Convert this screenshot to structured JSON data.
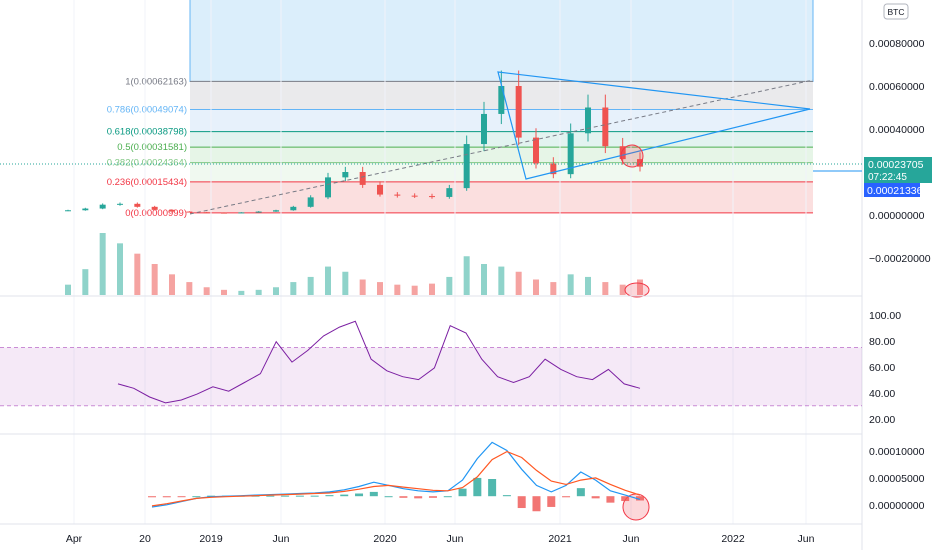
{
  "currency_badge": "BTC",
  "colors": {
    "up": "#26a69a",
    "down": "#ef5350",
    "rsi": "#7b1fa2",
    "macd": "#2196f3",
    "signal": "#ff5722",
    "triangle": "#2196f3",
    "highlight": "#f23645"
  },
  "price_axis": {
    "ticks": [
      "0.00080000",
      "0.00060000",
      "0.00040000",
      "0.00020000",
      "0.00000000",
      "−0.00020000"
    ]
  },
  "price_tags": {
    "current": "0.00023705",
    "countdown": "07:22:45",
    "secondary": "0.00021336"
  },
  "rsi_axis": {
    "ticks": [
      "100.00",
      "80.00",
      "60.00",
      "40.00",
      "20.00"
    ]
  },
  "macd_axis": {
    "ticks": [
      "0.00010000",
      "0.00005000",
      "0.00000000"
    ]
  },
  "date_axis": {
    "labels": [
      "Apr",
      "20",
      "2019",
      "Jun",
      "2020",
      "Jun",
      "2021",
      "Jun",
      "2022",
      "Jun"
    ]
  },
  "fib_levels": [
    {
      "ratio": 1,
      "price": 0.00062163,
      "label": "1(0.00062163)",
      "color": "#787b86",
      "fill": "#e8e8ea"
    },
    {
      "ratio": 0.786,
      "price": 0.00049074,
      "label": "0.786(0.00049074)",
      "color": "#64b5f6",
      "fill": "#e4f0fb"
    },
    {
      "ratio": 0.618,
      "price": 0.00038798,
      "label": "0.618(0.00038798)",
      "color": "#089981",
      "fill": "#dff2ee"
    },
    {
      "ratio": 0.5,
      "price": 0.00031581,
      "label": "0.5(0.00031581)",
      "color": "#4caf50",
      "fill": "#e3f4e4"
    },
    {
      "ratio": 0.382,
      "price": 0.00024364,
      "label": "0.382(0.00024364)",
      "color": "#81c784",
      "fill": "#eef8ee"
    },
    {
      "ratio": 0.236,
      "price": 0.00015434,
      "label": "0.236(0.00015434)",
      "color": "#f23645",
      "fill": "#fbdcdc"
    },
    {
      "ratio": 0,
      "price": 9.99e-06,
      "label": "0(0.00000999)",
      "color": "#f23645",
      "fill": null
    }
  ],
  "chart_data": [
    {
      "type": "candlestick",
      "pane": "price",
      "currency": "BTC",
      "y_range": [
        -0.00031,
        0.00092
      ],
      "x_range": [
        "2018-03",
        "2022-07"
      ],
      "close": [
        2.2e-05,
        3e-05,
        4.8e-05,
        5.2e-05,
        3.8e-05,
        2.4e-05,
        1.6e-05,
        1.3e-05,
        1.1e-05,
        1e-05,
        1.2e-05,
        1.6e-05,
        2.2e-05,
        3.8e-05,
        8.2e-05,
        0.000175,
        0.0002,
        0.00014,
        9.5e-05,
        9e-05,
        8.8e-05,
        8.4e-05,
        0.000125,
        0.00033,
        0.00047,
        0.0006,
        0.00036,
        0.00024,
        0.00019,
        0.00038,
        0.0005,
        0.00032,
        0.00026,
        0.000225
      ],
      "current_price": 0.00023705,
      "current_price_secondary": 0.00021336,
      "countdown": "07:22:45"
    },
    {
      "type": "bar",
      "pane": "volume",
      "values": [
        20,
        50,
        120,
        100,
        80,
        60,
        40,
        25,
        15,
        10,
        8,
        10,
        15,
        25,
        35,
        55,
        45,
        30,
        25,
        20,
        18,
        22,
        35,
        75,
        60,
        55,
        45,
        30,
        25,
        40,
        35,
        25,
        20,
        30
      ]
    },
    {
      "type": "line",
      "pane": "rsi",
      "ylim": [
        12,
        104
      ],
      "band": [
        30,
        70
      ],
      "values": [
        45,
        42,
        36,
        32,
        34,
        38,
        43,
        40,
        46,
        52,
        74,
        60,
        68,
        78,
        84,
        88,
        62,
        54,
        50,
        48,
        56,
        85,
        80,
        62,
        50,
        46,
        50,
        62,
        55,
        50,
        48,
        55,
        45,
        42
      ]
    },
    {
      "type": "line",
      "pane": "macd",
      "ylim": [
        -4.8e-05,
        0.000112
      ],
      "series": [
        {
          "values": [
            -2e-05,
            -1.6e-05,
            -1e-05,
            -4e-06,
            -1e-06,
            0.0,
            1e-06,
            2e-06,
            3e-06,
            4e-06,
            5e-06,
            6e-06,
            8e-06,
            1.2e-05,
            1.8e-05,
            2.6e-05,
            2e-05,
            1.4e-05,
            1e-05,
            8e-06,
            1e-05,
            3e-05,
            7e-05,
            0.0001,
            8.5e-05,
            5e-05,
            2e-05,
            8e-06,
            2e-05,
            4.5e-05,
            3e-05,
            1e-05,
            2e-06,
            -6e-06
          ]
        },
        {
          "values": [
            -1.8e-05,
            -1.4e-05,
            -9e-06,
            -4e-06,
            -2e-06,
            -1e-06,
            0.0,
            1e-06,
            2e-06,
            3e-06,
            4e-06,
            5e-06,
            6e-06,
            9e-06,
            1.3e-05,
            1.8e-05,
            2e-05,
            1.7e-05,
            1.4e-05,
            1.1e-05,
            1e-05,
            1.6e-05,
            3.6e-05,
            6.8e-05,
            8.3e-05,
            7.2e-05,
            4.8e-05,
            2.8e-05,
            2.2e-05,
            3e-05,
            3.4e-05,
            2.2e-05,
            1.1e-05,
            2e-06
          ]
        }
      ]
    }
  ]
}
